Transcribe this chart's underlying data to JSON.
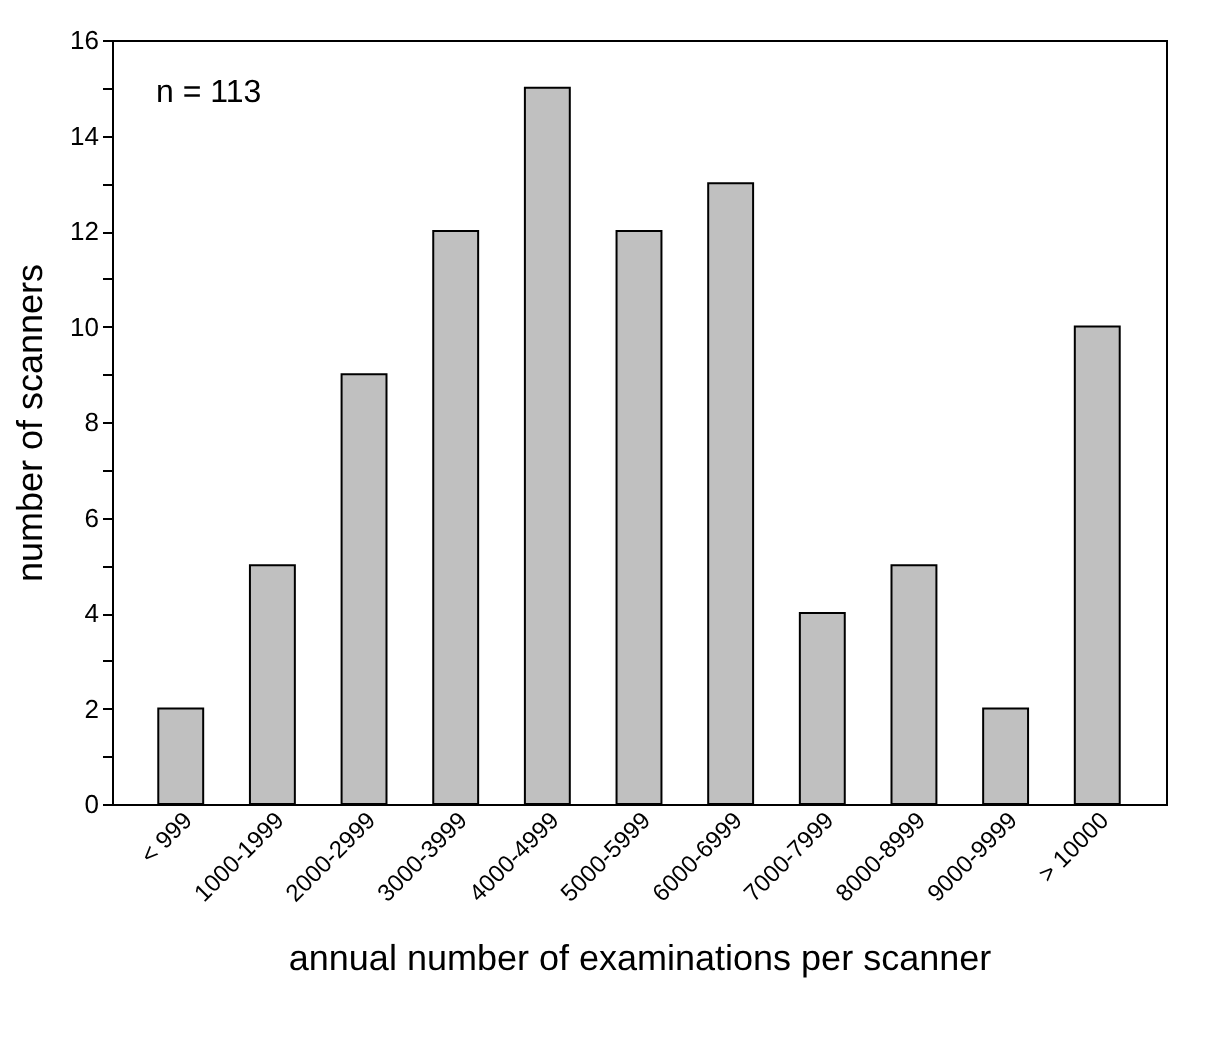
{
  "chart_data": {
    "type": "bar",
    "xlabel": "annual number of examinations per scanner",
    "ylabel": "number of scanners",
    "categories": [
      "< 999",
      "1000-1999",
      "2000-2999",
      "3000-3999",
      "4000-4999",
      "5000-5999",
      "6000-6999",
      "7000-7999",
      "8000-8999",
      "9000-9999",
      "> 10000"
    ],
    "values": [
      2,
      5,
      9,
      12,
      15,
      12,
      13,
      4,
      5,
      2,
      10
    ],
    "color": "#c0c0c0",
    "ylim": [
      0,
      16
    ],
    "yticks": [
      0,
      {
        "value": 1,
        "label": null
      },
      2,
      {
        "value": 3,
        "label": null
      },
      4,
      {
        "value": 5,
        "label": null
      },
      6,
      {
        "value": 7,
        "label": null
      },
      8,
      {
        "value": 9,
        "label": null
      },
      10,
      {
        "value": 11,
        "label": null
      },
      12,
      {
        "value": 13,
        "label": null
      },
      14,
      {
        "value": 15,
        "label": null
      },
      16
    ],
    "annotations": [
      "n = 113"
    ],
    "grid": false
  }
}
